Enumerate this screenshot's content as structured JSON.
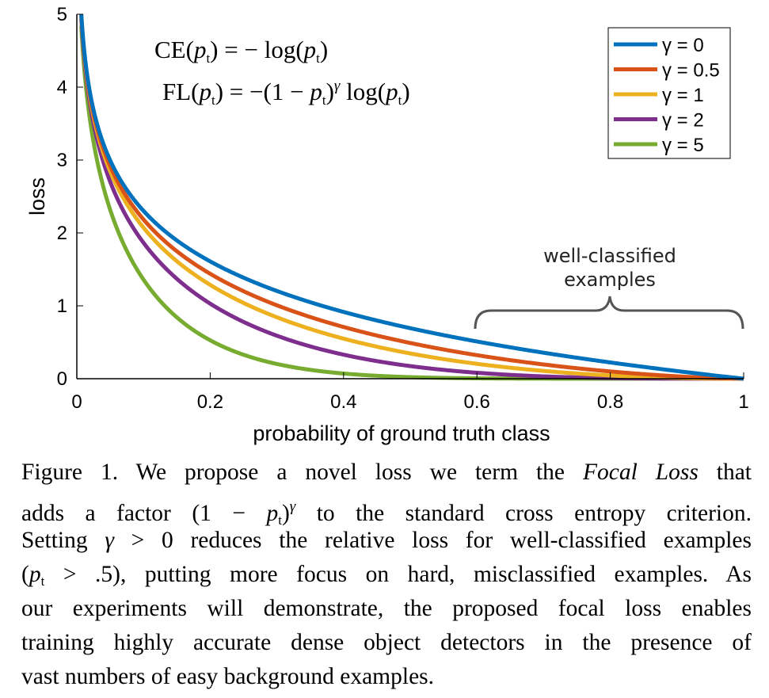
{
  "chart_data": {
    "type": "line",
    "title": "",
    "xlabel": "probability of ground truth class",
    "ylabel": "loss",
    "xlim": [
      0,
      1
    ],
    "ylim": [
      0,
      5
    ],
    "xticks": [
      "0",
      "0.2",
      "0.4",
      "0.6",
      "0.8",
      "1"
    ],
    "yticks": [
      "0",
      "1",
      "2",
      "3",
      "4",
      "5"
    ],
    "function": "loss = -(1 - p)^gamma * log(p)",
    "series": [
      {
        "name": "γ = 0",
        "gamma": 0,
        "color": "#0072BD"
      },
      {
        "name": "γ = 0.5",
        "gamma": 0.5,
        "color": "#D95319"
      },
      {
        "name": "γ = 1",
        "gamma": 1,
        "color": "#EDB120"
      },
      {
        "name": "γ = 2",
        "gamma": 2,
        "color": "#7E2F8E"
      },
      {
        "name": "γ = 5",
        "gamma": 5,
        "color": "#77AC30"
      }
    ],
    "legend_position": "top-right",
    "annotation": {
      "text_line1": "well-classified",
      "text_line2": "examples",
      "x_range": [
        0.6,
        1
      ]
    },
    "formulas": [
      [
        {
          "t": "CE("
        },
        {
          "i": "p"
        },
        {
          "sub": "t"
        },
        {
          "t": ") = − log("
        },
        {
          "i": "p"
        },
        {
          "sub": "t"
        },
        {
          "t": ")"
        }
      ],
      [
        {
          "t": "FL("
        },
        {
          "i": "p"
        },
        {
          "sub": "t"
        },
        {
          "t": ") = −(1 − "
        },
        {
          "i": "p"
        },
        {
          "sub": "t"
        },
        {
          "t": ")"
        },
        {
          "sup": "γ"
        },
        {
          "t": " log("
        },
        {
          "i": "p"
        },
        {
          "sub": "t"
        },
        {
          "t": ")"
        }
      ]
    ]
  },
  "caption": [
    [
      {
        "t": "Figure 1. We propose a novel loss we term the "
      },
      {
        "i": "Focal Loss"
      },
      {
        "t": " that"
      }
    ],
    [
      {
        "t": "adds a factor (1 − "
      },
      {
        "i": "p"
      },
      {
        "sub": "t"
      },
      {
        "t": ")"
      },
      {
        "sup": "γ"
      },
      {
        "t": " to the standard cross entropy criterion."
      }
    ],
    [
      {
        "t": "Setting "
      },
      {
        "i": "γ"
      },
      {
        "t": " > 0 reduces the relative loss for well-classified examples"
      }
    ],
    [
      {
        "t": "("
      },
      {
        "i": "p"
      },
      {
        "sub": "t"
      },
      {
        "t": " > .5), putting more focus on hard, misclassified examples. As"
      }
    ],
    [
      {
        "t": "our experiments will demonstrate, the proposed focal loss enables"
      }
    ],
    [
      {
        "t": "training highly accurate dense object detectors in the presence of"
      }
    ],
    [
      {
        "t": "vast numbers of easy background examples."
      }
    ]
  ]
}
